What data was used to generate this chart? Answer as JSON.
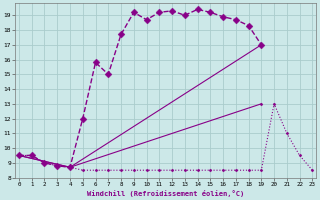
{
  "background_color": "#cce8e8",
  "grid_color": "#aacccc",
  "line_color": "#880088",
  "xlim": [
    -0.5,
    23.5
  ],
  "ylim": [
    8,
    19.8
  ],
  "xlabel": "Windchill (Refroidissement éolien,°C)",
  "xticks": [
    0,
    1,
    2,
    3,
    4,
    5,
    6,
    7,
    8,
    9,
    10,
    11,
    12,
    13,
    14,
    15,
    16,
    17,
    18,
    19,
    20,
    21,
    22,
    23
  ],
  "yticks": [
    8,
    9,
    10,
    11,
    12,
    13,
    14,
    15,
    16,
    17,
    18,
    19
  ],
  "curves": [
    {
      "x": [
        0,
        1,
        2,
        3,
        4,
        5,
        6,
        7,
        8,
        9,
        10,
        11,
        12,
        13,
        14,
        15,
        16,
        17,
        18,
        19
      ],
      "y": [
        9.5,
        9.5,
        9.0,
        8.8,
        8.7,
        12.0,
        15.8,
        15.0,
        17.7,
        19.2,
        18.7,
        19.2,
        19.3,
        19.0,
        19.4,
        19.2,
        18.9,
        18.7,
        18.3,
        17.0
      ],
      "linestyle": "--",
      "linewidth": 1.0,
      "markersize": 3.5
    },
    {
      "x": [
        0,
        4,
        19
      ],
      "y": [
        9.5,
        8.7,
        17.0
      ],
      "linestyle": "-",
      "linewidth": 0.8,
      "markersize": 1.5
    },
    {
      "x": [
        0,
        4,
        19
      ],
      "y": [
        9.5,
        8.7,
        13.0
      ],
      "linestyle": "-",
      "linewidth": 0.8,
      "markersize": 1.5
    },
    {
      "x": [
        0,
        1,
        2,
        3,
        4,
        5,
        6,
        7,
        8,
        9,
        10,
        11,
        12,
        13,
        14,
        15,
        16,
        17,
        18,
        19,
        20,
        21,
        22,
        23
      ],
      "y": [
        9.5,
        9.5,
        9.0,
        8.8,
        8.7,
        8.5,
        8.5,
        8.5,
        8.5,
        8.5,
        8.5,
        8.5,
        8.5,
        8.5,
        8.5,
        8.5,
        8.5,
        8.5,
        8.5,
        8.5,
        13.0,
        11.0,
        9.5,
        8.5
      ],
      "linestyle": ":",
      "linewidth": 0.8,
      "markersize": 1.5
    }
  ]
}
